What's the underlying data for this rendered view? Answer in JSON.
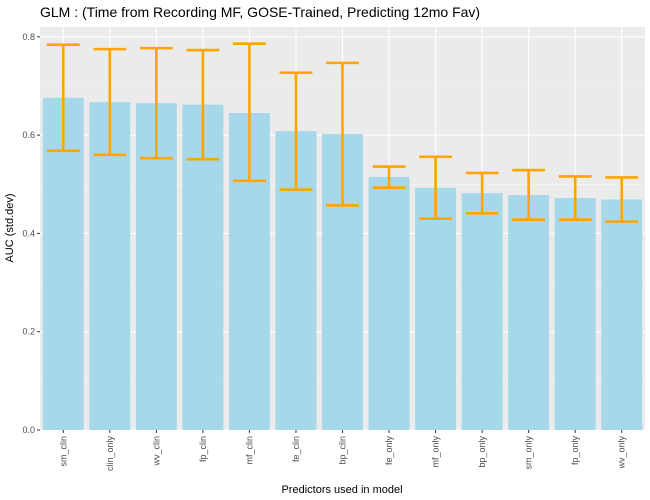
{
  "chart_data": {
    "type": "bar",
    "title": "GLM : (Time from Recording MF, GOSE-Trained, Predicting 12mo Fav)",
    "xlabel": "Predictors used in model",
    "ylabel": "AUC (std.dev)",
    "ylim": [
      0,
      0.82
    ],
    "yticks": [
      0.0,
      0.2,
      0.4,
      0.6,
      0.8
    ],
    "ytick_labels": [
      "0.0",
      "0.2",
      "0.4",
      "0.6",
      "0.8"
    ],
    "grid": true,
    "categories": [
      "sm_clin",
      "clin_only",
      "wv_clin",
      "fp_clin",
      "mf_clin",
      "fe_clin",
      "bp_clin",
      "fe_only",
      "mf_only",
      "bp_only",
      "sm_only",
      "fp_only",
      "wv_only"
    ],
    "values": [
      0.676,
      0.667,
      0.665,
      0.662,
      0.645,
      0.608,
      0.602,
      0.515,
      0.493,
      0.482,
      0.478,
      0.472,
      0.469
    ],
    "error_low": [
      0.568,
      0.56,
      0.553,
      0.551,
      0.507,
      0.489,
      0.457,
      0.493,
      0.43,
      0.441,
      0.428,
      0.428,
      0.424
    ],
    "error_high": [
      0.784,
      0.775,
      0.777,
      0.773,
      0.786,
      0.727,
      0.747,
      0.536,
      0.556,
      0.523,
      0.529,
      0.516,
      0.514
    ],
    "colors": {
      "bar": "#a6d8ea",
      "errorbar": "#ffa500",
      "panel": "#ebebeb",
      "grid": "#ffffff",
      "tick_text": "#4d4d4d"
    }
  }
}
